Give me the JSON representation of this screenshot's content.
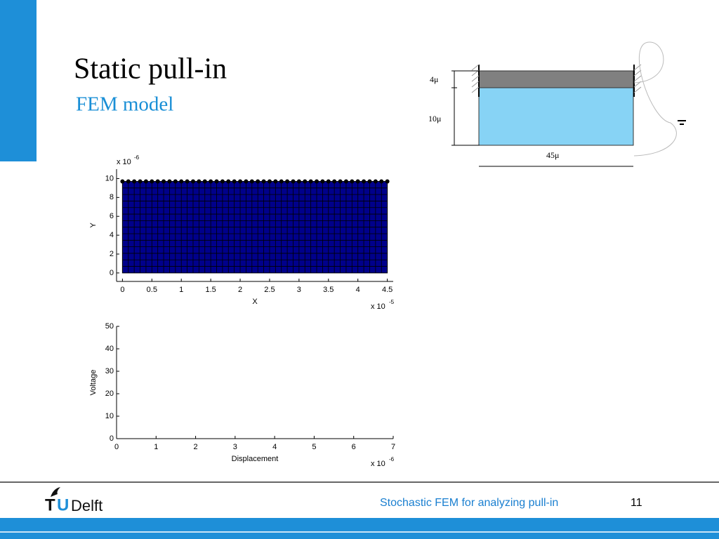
{
  "slide": {
    "title": "Static pull-in",
    "subtitle": "FEM model",
    "footer": "Stochastic FEM for analyzing pull-in",
    "page": "11",
    "logo": {
      "t": "T",
      "u": "U",
      "name": "Delft"
    }
  },
  "diagram": {
    "thickness_label": "4μ",
    "gap_label": "10μ",
    "length_label": "45μ"
  },
  "chart_data": [
    {
      "type": "mesh",
      "xlabel": "X",
      "ylabel": "Y",
      "x_exponent": {
        "label": "x 10",
        "exponent": "-5"
      },
      "y_exponent": {
        "label": "x 10",
        "exponent": "-6"
      },
      "x_range": [
        0,
        4.5
      ],
      "y_range": [
        0,
        9.7
      ],
      "columns": 45,
      "rows": 14,
      "color": "#00008b",
      "xlim": [
        -0.1,
        4.6
      ],
      "ylim": [
        -0.9,
        11.0
      ],
      "xticks": [
        0,
        0.5,
        1,
        1.5,
        2,
        2.5,
        3,
        3.5,
        4,
        4.5
      ],
      "yticks": [
        0,
        2,
        4,
        6,
        8,
        10
      ]
    },
    {
      "type": "line",
      "xlabel": "Displacement",
      "ylabel": "Voltage",
      "x_exponent": {
        "label": "x 10",
        "exponent": "-6"
      },
      "series": [],
      "xlim": [
        0,
        7
      ],
      "ylim": [
        0,
        50
      ],
      "xticks": [
        0,
        1,
        2,
        3,
        4,
        5,
        6,
        7
      ],
      "yticks": [
        0,
        10,
        20,
        30,
        40,
        50
      ]
    }
  ]
}
